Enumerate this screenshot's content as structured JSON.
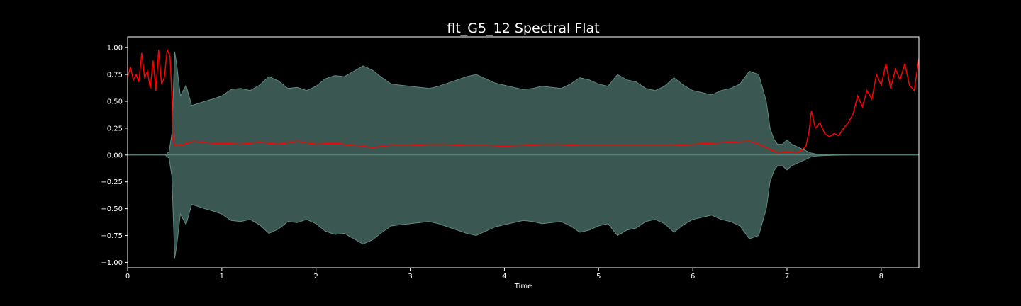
{
  "chart_data": {
    "type": "area",
    "title": "flt_G5_12 Spectral Flat",
    "xlabel": "Time",
    "ylabel": "",
    "xlim": [
      0,
      8.4
    ],
    "ylim": [
      -1.05,
      1.1
    ],
    "xticks": [
      0,
      1,
      2,
      3,
      4,
      5,
      6,
      7,
      8
    ],
    "xtick_labels": [
      "0",
      "1",
      "2",
      "3",
      "4",
      "5",
      "6",
      "7",
      "8"
    ],
    "yticks": [
      -1.0,
      -0.75,
      -0.5,
      -0.25,
      0.0,
      0.25,
      0.5,
      0.75,
      1.0
    ],
    "ytick_labels": [
      "−1.00",
      "−0.75",
      "−0.50",
      "−0.25",
      "0.00",
      "0.25",
      "0.50",
      "0.75",
      "1.00"
    ],
    "grid": false,
    "colors": {
      "background": "#000000",
      "waveform_fill": "#3b5751",
      "waveform_edge": "#5e8a80",
      "flatness_line": "#ff0000",
      "axes": "#ffffff"
    },
    "series": [
      {
        "kind": "waveform-envelope",
        "x": [
          0,
          0.4,
          0.44,
          0.47,
          0.5,
          0.52,
          0.56,
          0.62,
          0.68,
          0.75,
          0.82,
          0.9,
          1.0,
          1.1,
          1.2,
          1.3,
          1.4,
          1.5,
          1.6,
          1.7,
          1.8,
          1.9,
          2.0,
          2.1,
          2.2,
          2.3,
          2.4,
          2.5,
          2.6,
          2.7,
          2.8,
          2.9,
          3.0,
          3.1,
          3.2,
          3.3,
          3.4,
          3.5,
          3.6,
          3.7,
          3.8,
          3.9,
          4.0,
          4.1,
          4.2,
          4.3,
          4.4,
          4.5,
          4.6,
          4.7,
          4.8,
          4.9,
          5.0,
          5.1,
          5.2,
          5.3,
          5.4,
          5.5,
          5.6,
          5.7,
          5.8,
          5.9,
          6.0,
          6.1,
          6.2,
          6.3,
          6.4,
          6.5,
          6.6,
          6.7,
          6.78,
          6.82,
          6.86,
          6.9,
          6.95,
          7.0,
          7.05,
          7.1,
          7.15,
          7.2,
          7.25,
          7.3,
          7.4,
          7.5,
          7.7,
          8.0,
          8.4
        ],
        "values": [
          0,
          0.0,
          0.03,
          0.2,
          0.96,
          0.85,
          0.55,
          0.65,
          0.46,
          0.48,
          0.5,
          0.52,
          0.55,
          0.61,
          0.62,
          0.6,
          0.65,
          0.73,
          0.69,
          0.62,
          0.63,
          0.6,
          0.64,
          0.71,
          0.74,
          0.73,
          0.78,
          0.83,
          0.79,
          0.72,
          0.66,
          0.65,
          0.64,
          0.63,
          0.62,
          0.64,
          0.67,
          0.7,
          0.73,
          0.75,
          0.71,
          0.67,
          0.65,
          0.63,
          0.61,
          0.62,
          0.64,
          0.63,
          0.62,
          0.66,
          0.72,
          0.7,
          0.66,
          0.64,
          0.75,
          0.7,
          0.68,
          0.62,
          0.6,
          0.64,
          0.72,
          0.65,
          0.6,
          0.58,
          0.56,
          0.6,
          0.62,
          0.66,
          0.78,
          0.75,
          0.5,
          0.25,
          0.15,
          0.1,
          0.1,
          0.14,
          0.1,
          0.08,
          0.06,
          0.04,
          0.02,
          0.01,
          0.005,
          0.002,
          0.0,
          0.0,
          0
        ]
      },
      {
        "kind": "spectral-flatness",
        "x": [
          0,
          0.03,
          0.06,
          0.09,
          0.12,
          0.15,
          0.18,
          0.21,
          0.24,
          0.27,
          0.3,
          0.33,
          0.36,
          0.39,
          0.42,
          0.45,
          0.47,
          0.48,
          0.49,
          0.5,
          0.55,
          0.6,
          0.7,
          0.8,
          0.9,
          1.0,
          1.2,
          1.4,
          1.6,
          1.8,
          2.0,
          2.2,
          2.4,
          2.6,
          2.8,
          3.0,
          3.2,
          3.4,
          3.6,
          3.8,
          4.0,
          4.2,
          4.4,
          4.6,
          4.8,
          5.0,
          5.2,
          5.4,
          5.6,
          5.8,
          6.0,
          6.2,
          6.4,
          6.6,
          6.7,
          6.8,
          6.9,
          7.0,
          7.1,
          7.15,
          7.2,
          7.23,
          7.26,
          7.3,
          7.35,
          7.4,
          7.45,
          7.5,
          7.55,
          7.6,
          7.65,
          7.7,
          7.75,
          7.8,
          7.85,
          7.9,
          7.95,
          8.0,
          8.05,
          8.1,
          8.15,
          8.2,
          8.25,
          8.3,
          8.35,
          8.4
        ],
        "values": [
          0.72,
          0.82,
          0.7,
          0.75,
          0.68,
          0.95,
          0.72,
          0.78,
          0.62,
          0.88,
          0.6,
          0.98,
          0.66,
          0.72,
          0.98,
          0.92,
          0.55,
          0.2,
          0.12,
          0.09,
          0.09,
          0.1,
          0.13,
          0.12,
          0.11,
          0.11,
          0.1,
          0.12,
          0.1,
          0.13,
          0.1,
          0.11,
          0.09,
          0.07,
          0.09,
          0.09,
          0.1,
          0.1,
          0.09,
          0.09,
          0.08,
          0.09,
          0.1,
          0.1,
          0.09,
          0.09,
          0.09,
          0.09,
          0.09,
          0.09,
          0.1,
          0.11,
          0.12,
          0.13,
          0.1,
          0.06,
          0.02,
          0.03,
          0.02,
          0.04,
          0.08,
          0.2,
          0.41,
          0.25,
          0.3,
          0.2,
          0.17,
          0.2,
          0.18,
          0.25,
          0.3,
          0.38,
          0.55,
          0.45,
          0.6,
          0.52,
          0.75,
          0.65,
          0.85,
          0.62,
          0.8,
          0.7,
          0.85,
          0.65,
          0.6,
          0.9
        ]
      }
    ]
  }
}
